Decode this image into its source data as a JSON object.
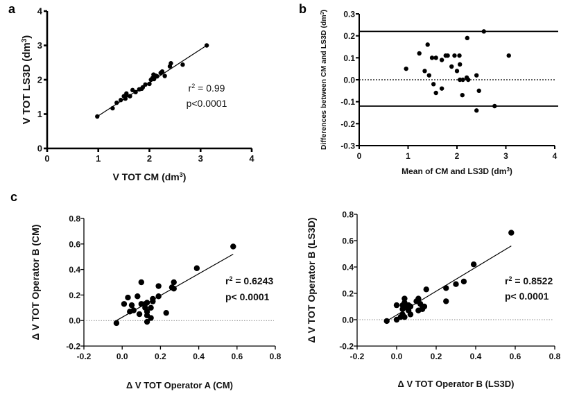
{
  "chart_data": [
    {
      "panel": "a",
      "type": "scatter",
      "xlabel": "V TOT CM (dm",
      "xlabel_sup": "3",
      "xlabel_end": ")",
      "ylabel": "V TOT LS3D (dm",
      "ylabel_sup": "3",
      "ylabel_end": ")",
      "xlim": [
        0,
        4
      ],
      "ylim": [
        0,
        4
      ],
      "xticks": [
        "0",
        "1",
        "2",
        "3",
        "4"
      ],
      "yticks": [
        "0",
        "1",
        "2",
        "3",
        "4"
      ],
      "annotation": {
        "r2_label": "r",
        "r2_sup": "2",
        "r2_value": " = 0.99",
        "p_value": "p<0.0001"
      },
      "regression": {
        "x": [
          0.98,
          3.12
        ],
        "y": [
          0.93,
          3.0
        ]
      },
      "points": [
        [
          0.98,
          0.93
        ],
        [
          1.28,
          1.17
        ],
        [
          1.36,
          1.33
        ],
        [
          1.44,
          1.41
        ],
        [
          1.5,
          1.52
        ],
        [
          1.53,
          1.45
        ],
        [
          1.55,
          1.6
        ],
        [
          1.55,
          1.55
        ],
        [
          1.62,
          1.52
        ],
        [
          1.67,
          1.7
        ],
        [
          1.73,
          1.64
        ],
        [
          1.8,
          1.72
        ],
        [
          1.85,
          1.74
        ],
        [
          1.87,
          1.78
        ],
        [
          1.92,
          1.86
        ],
        [
          2.0,
          1.88
        ],
        [
          2.03,
          2.0
        ],
        [
          2.06,
          2.05
        ],
        [
          2.08,
          2.15
        ],
        [
          2.09,
          2.02
        ],
        [
          2.12,
          2.12
        ],
        [
          2.15,
          2.1
        ],
        [
          2.22,
          2.2
        ],
        [
          2.25,
          2.24
        ],
        [
          2.3,
          2.11
        ],
        [
          2.4,
          2.39
        ],
        [
          2.42,
          2.48
        ],
        [
          2.65,
          2.44
        ],
        [
          3.12,
          3.0
        ]
      ]
    },
    {
      "panel": "b",
      "type": "scatter",
      "xlabel": "Mean of CM and LS3D (dm",
      "xlabel_sup": "3",
      "xlabel_end": ")",
      "ylabel": "Differences between CM and LS3D (dm",
      "ylabel_sup": "3",
      "ylabel_end": ")",
      "xlim": [
        0,
        4
      ],
      "ylim": [
        -0.3,
        0.3
      ],
      "xticks": [
        "0",
        "1",
        "2",
        "3",
        "4"
      ],
      "yticks": [
        "-0.3",
        "-0.2",
        "-0.1",
        "0.0",
        "0.1",
        "0.2",
        "0.3"
      ],
      "limits_of_agreement": [
        0.22,
        -0.12
      ],
      "mean_line": 0.0,
      "points": [
        [
          0.96,
          0.05
        ],
        [
          1.23,
          0.12
        ],
        [
          1.34,
          0.04
        ],
        [
          1.4,
          0.16
        ],
        [
          1.43,
          0.02
        ],
        [
          1.49,
          0.1
        ],
        [
          1.52,
          -0.02
        ],
        [
          1.57,
          0.1
        ],
        [
          1.57,
          -0.06
        ],
        [
          1.69,
          0.09
        ],
        [
          1.69,
          -0.04
        ],
        [
          1.77,
          0.11
        ],
        [
          1.81,
          0.11
        ],
        [
          1.89,
          0.06
        ],
        [
          1.95,
          0.11
        ],
        [
          2.0,
          0.04
        ],
        [
          2.05,
          0.11
        ],
        [
          2.06,
          0.07
        ],
        [
          2.06,
          0.0
        ],
        [
          2.11,
          -0.07
        ],
        [
          2.12,
          0.0
        ],
        [
          2.2,
          0.01
        ],
        [
          2.21,
          0.19
        ],
        [
          2.23,
          0.0
        ],
        [
          2.4,
          0.02
        ],
        [
          2.4,
          -0.14
        ],
        [
          2.45,
          -0.05
        ],
        [
          2.55,
          0.22
        ],
        [
          2.77,
          -0.12
        ],
        [
          3.06,
          0.11
        ]
      ]
    },
    {
      "panel": "c-left",
      "type": "scatter",
      "xlabel": "Δ V TOT Operator A (CM)",
      "ylabel": "Δ V TOT Operator B (CM)",
      "xlim": [
        -0.2,
        0.8
      ],
      "ylim": [
        -0.2,
        0.8
      ],
      "xticks": [
        "-0.2",
        "0.0",
        "0.2",
        "0.4",
        "0.6",
        "0.8"
      ],
      "yticks": [
        "-0.2",
        "0.0",
        "0.2",
        "0.4",
        "0.6",
        "0.8"
      ],
      "annotation": {
        "r2_label": "r",
        "r2_sup": "2",
        "r2_value": " = 0.6243",
        "p_value": "p< 0.0001"
      },
      "regression": {
        "x": [
          -0.03,
          0.58
        ],
        "y": [
          0.0,
          0.52
        ]
      },
      "zero_line": 0.0,
      "points": [
        [
          -0.03,
          -0.02
        ],
        [
          0.01,
          0.13
        ],
        [
          0.03,
          0.18
        ],
        [
          0.04,
          0.07
        ],
        [
          0.05,
          0.12
        ],
        [
          0.06,
          0.08
        ],
        [
          0.08,
          0.19
        ],
        [
          0.09,
          0.05
        ],
        [
          0.1,
          0.3
        ],
        [
          0.1,
          0.13
        ],
        [
          0.12,
          0.13
        ],
        [
          0.12,
          0.1
        ],
        [
          0.13,
          0.14
        ],
        [
          0.13,
          0.07
        ],
        [
          0.13,
          0.04
        ],
        [
          0.13,
          -0.01
        ],
        [
          0.15,
          0.1
        ],
        [
          0.15,
          0.02
        ],
        [
          0.16,
          0.17
        ],
        [
          0.16,
          0.15
        ],
        [
          0.19,
          0.27
        ],
        [
          0.19,
          0.19
        ],
        [
          0.23,
          0.06
        ],
        [
          0.26,
          0.26
        ],
        [
          0.27,
          0.3
        ],
        [
          0.27,
          0.25
        ],
        [
          0.39,
          0.41
        ],
        [
          0.58,
          0.58
        ]
      ]
    },
    {
      "panel": "c-right",
      "type": "scatter",
      "xlabel": "Δ V TOT Operator B (LS3D)",
      "ylabel": "Δ V TOT Operator B (LS3D)",
      "xlim": [
        -0.2,
        0.8
      ],
      "ylim": [
        -0.2,
        0.8
      ],
      "xticks": [
        "-0.2",
        "0.0",
        "0.2",
        "0.4",
        "0.6",
        "0.8"
      ],
      "yticks": [
        "-0.2",
        "0.0",
        "0.2",
        "0.4",
        "0.6",
        "0.8"
      ],
      "annotation": {
        "r2_label": "r",
        "r2_sup": "2",
        "r2_value": " = 0.8522",
        "p_value": "p< 0.0001"
      },
      "regression": {
        "x": [
          -0.05,
          0.58
        ],
        "y": [
          -0.01,
          0.56
        ]
      },
      "zero_line": 0.0,
      "points": [
        [
          -0.05,
          -0.01
        ],
        [
          0.0,
          0.11
        ],
        [
          0.0,
          0.0
        ],
        [
          0.02,
          0.02
        ],
        [
          0.03,
          0.04
        ],
        [
          0.03,
          0.08
        ],
        [
          0.03,
          0.11
        ],
        [
          0.04,
          0.16
        ],
        [
          0.04,
          0.13
        ],
        [
          0.04,
          0.02
        ],
        [
          0.05,
          0.1
        ],
        [
          0.06,
          0.11
        ],
        [
          0.06,
          0.07
        ],
        [
          0.07,
          0.04
        ],
        [
          0.07,
          0.1
        ],
        [
          0.1,
          0.14
        ],
        [
          0.11,
          0.16
        ],
        [
          0.11,
          0.07
        ],
        [
          0.12,
          0.12
        ],
        [
          0.13,
          0.1
        ],
        [
          0.13,
          0.08
        ],
        [
          0.14,
          0.1
        ],
        [
          0.15,
          0.23
        ],
        [
          0.25,
          0.24
        ],
        [
          0.25,
          0.14
        ],
        [
          0.3,
          0.27
        ],
        [
          0.34,
          0.29
        ],
        [
          0.39,
          0.42
        ],
        [
          0.58,
          0.66
        ]
      ]
    }
  ],
  "panel_labels": [
    "a",
    "b",
    "c"
  ],
  "colors": {
    "ink": "#000000",
    "background": "#ffffff"
  }
}
